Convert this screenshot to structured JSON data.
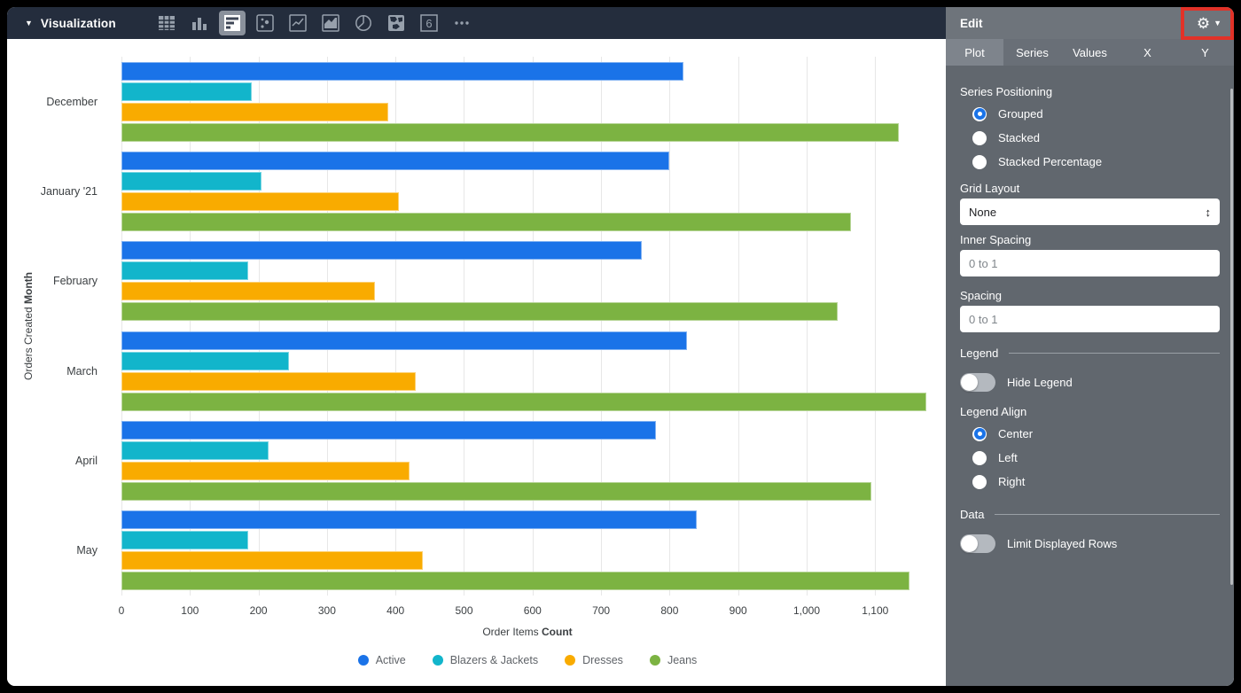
{
  "toolbar": {
    "title": "Visualization",
    "icons": [
      "table-icon",
      "column-chart-icon",
      "bar-chart-icon",
      "scatter-icon",
      "line-chart-icon",
      "area-chart-icon",
      "pie-chart-icon",
      "map-icon",
      "single-value-icon",
      "more-icon"
    ],
    "selected_icon": "bar-chart-icon"
  },
  "chart_data": {
    "type": "bar",
    "orientation": "horizontal",
    "title": "",
    "categories": [
      "December",
      "January '21",
      "February",
      "March",
      "April",
      "May"
    ],
    "series": [
      {
        "name": "Active",
        "color": "#1A73E8",
        "values": [
          820,
          800,
          760,
          825,
          780,
          840
        ]
      },
      {
        "name": "Blazers & Jackets",
        "color": "#12B5CB",
        "values": [
          190,
          205,
          185,
          245,
          215,
          185
        ]
      },
      {
        "name": "Dresses",
        "color": "#F9AB00",
        "values": [
          390,
          405,
          370,
          430,
          420,
          440
        ]
      },
      {
        "name": "Jeans",
        "color": "#7CB342",
        "values": [
          1135,
          1065,
          1045,
          1175,
          1095,
          1150
        ]
      }
    ],
    "xlabel": "Order Items Count",
    "xlabel_regular": "Order Items ",
    "xlabel_bold": "Count",
    "ylabel": "Orders Created Month",
    "ylabel_regular": "Orders Created ",
    "ylabel_bold": "Month",
    "x_ticks": [
      0,
      100,
      200,
      300,
      400,
      500,
      600,
      700,
      800,
      900,
      1000,
      1100
    ],
    "x_tick_labels": [
      "0",
      "100",
      "200",
      "300",
      "400",
      "500",
      "600",
      "700",
      "800",
      "900",
      "1,000",
      "1,100"
    ],
    "xlim": [
      0,
      1185
    ],
    "grid": true,
    "legend_position": "bottom"
  },
  "panel": {
    "title": "Edit",
    "tabs": [
      "Plot",
      "Series",
      "Values",
      "X",
      "Y"
    ],
    "active_tab": "Plot",
    "series_positioning": {
      "label": "Series Positioning",
      "options": [
        "Grouped",
        "Stacked",
        "Stacked Percentage"
      ],
      "selected": "Grouped"
    },
    "grid_layout": {
      "label": "Grid Layout",
      "value": "None"
    },
    "inner_spacing": {
      "label": "Inner Spacing",
      "placeholder": "0 to 1",
      "value": ""
    },
    "spacing": {
      "label": "Spacing",
      "placeholder": "0 to 1",
      "value": ""
    },
    "legend": {
      "header": "Legend",
      "hide_legend_label": "Hide Legend",
      "hide_legend_on": false,
      "align_label": "Legend Align",
      "align_options": [
        "Center",
        "Left",
        "Right"
      ],
      "align_selected": "Center"
    },
    "data_section": {
      "header": "Data",
      "limit_rows_label": "Limit Displayed Rows",
      "limit_rows_on": false
    },
    "annotation_color": "#E23228"
  }
}
